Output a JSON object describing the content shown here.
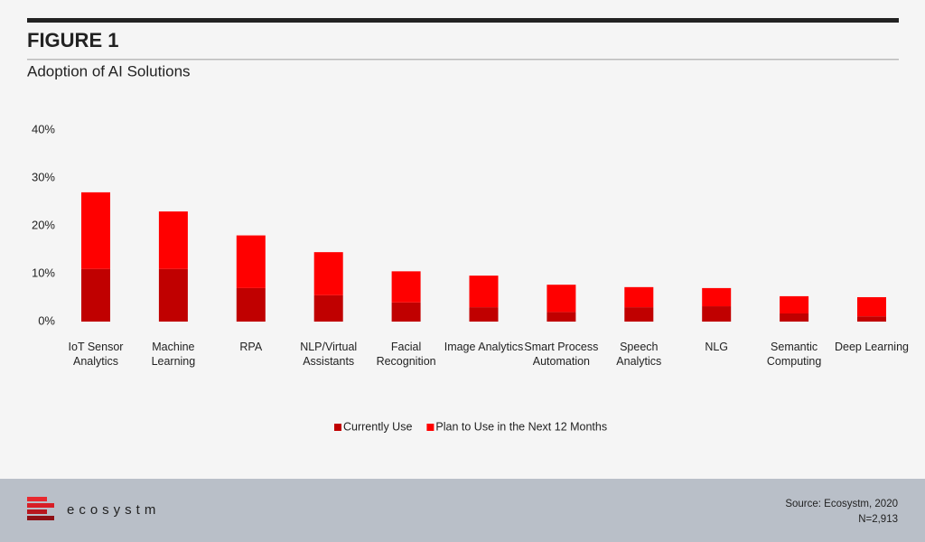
{
  "header": {
    "figure": "FIGURE 1"
  },
  "chart_data": {
    "type": "stacked_bar",
    "title": "Adoption of AI Solutions",
    "categories": [
      "IoT Sensor Analytics",
      "Machine Learning",
      "RPA",
      "NLP/Virtual Assistants",
      "Facial Recognition",
      "Image Analytics",
      "Smart Process Automation",
      "Speech Analytics",
      "NLG",
      "Semantic Computing",
      "Deep Learning"
    ],
    "series": [
      {
        "name": "Currently Use",
        "color": "#c00000",
        "values": [
          11,
          11,
          7,
          5.5,
          4,
          3,
          2,
          3,
          3.2,
          1.7,
          1.1
        ]
      },
      {
        "name": "Plan to Use in the Next 12 Months",
        "color": "#ff0000",
        "values": [
          16,
          12,
          11,
          9,
          6.5,
          6.6,
          5.7,
          4.2,
          3.8,
          3.6,
          4
        ]
      }
    ],
    "ylim": [
      0,
      40
    ],
    "yticks": [
      {
        "value": 0,
        "label": "0%"
      },
      {
        "value": 10,
        "label": "10%"
      },
      {
        "value": 20,
        "label": "20%"
      },
      {
        "value": 30,
        "label": "30%"
      },
      {
        "value": 40,
        "label": "40%"
      }
    ],
    "grid": false,
    "legend": "bottom"
  },
  "footer": {
    "brand": "ecosystm",
    "source": "Source: Ecosystm, 2020",
    "sample": "N=2,913"
  }
}
